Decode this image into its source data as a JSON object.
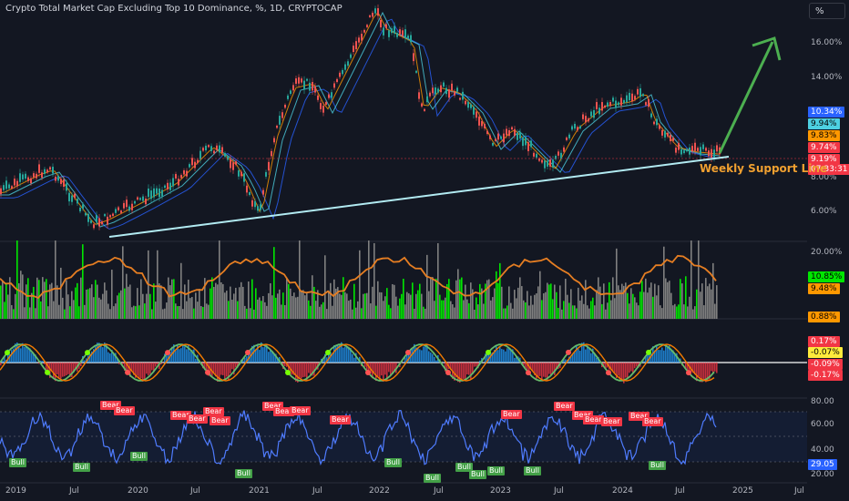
{
  "header": {
    "title": "Crypto Total Market Cap Excluding Top 10 Dominance, %, 1D, CRYPTOCAP",
    "unit_button": "%"
  },
  "annotation": "Weekly Support Line",
  "price_axis": [
    "16.00%",
    "14.00%",
    "8.00%",
    "6.00%"
  ],
  "price_tags": [
    {
      "label": "10.34%",
      "bg": "#2962ff",
      "fg": "#ffffff"
    },
    {
      "label": "9.94%",
      "bg": "#4dd0e1",
      "fg": "#000000"
    },
    {
      "label": "9.83%",
      "bg": "#ff9800",
      "fg": "#000000"
    },
    {
      "label": "9.74%",
      "bg": "#f23645",
      "fg": "#ffffff"
    },
    {
      "label": "9.19%",
      "bg": "#f23645",
      "fg": "#ffffff"
    },
    {
      "label": "07:33:31",
      "bg": "#f23645",
      "fg": "#ffffff"
    }
  ],
  "volume_panel": {
    "axis": [
      "20.00%"
    ],
    "tags": [
      {
        "label": "10.85%",
        "bg": "#00e600",
        "fg": "#000000"
      },
      {
        "label": "9.48%",
        "bg": "#ff9800",
        "fg": "#000000"
      },
      {
        "label": "0.88%",
        "bg": "#ff9800",
        "fg": "#000000"
      }
    ]
  },
  "momentum_panel": {
    "tags": [
      {
        "label": "0.17%",
        "bg": "#f23645",
        "fg": "#ffffff"
      },
      {
        "label": "-0.07%",
        "bg": "#ffeb3b",
        "fg": "#000000"
      },
      {
        "label": "-0.09%",
        "bg": "#f23645",
        "fg": "#ffffff"
      },
      {
        "label": "-0.17%",
        "bg": "#f23645",
        "fg": "#ffffff"
      }
    ]
  },
  "rsi_panel": {
    "axis": [
      "80.00",
      "60.00",
      "40.00",
      "20.00"
    ],
    "current_tag": {
      "label": "29.05",
      "bg": "#2962ff",
      "fg": "#ffffff"
    },
    "bear_label": "Bear",
    "bull_label": "Bull"
  },
  "x_axis": [
    "2019",
    "Jul",
    "2020",
    "Jul",
    "2021",
    "Jul",
    "2022",
    "Jul",
    "2023",
    "Jul",
    "2024",
    "Jul",
    "2025",
    "Jul"
  ],
  "colors": {
    "background": "#131722",
    "up": "#26a69a",
    "down": "#ef5350",
    "support": "#b2ebf2",
    "arrow": "#4caf50",
    "annotation": "#f0a030"
  }
}
